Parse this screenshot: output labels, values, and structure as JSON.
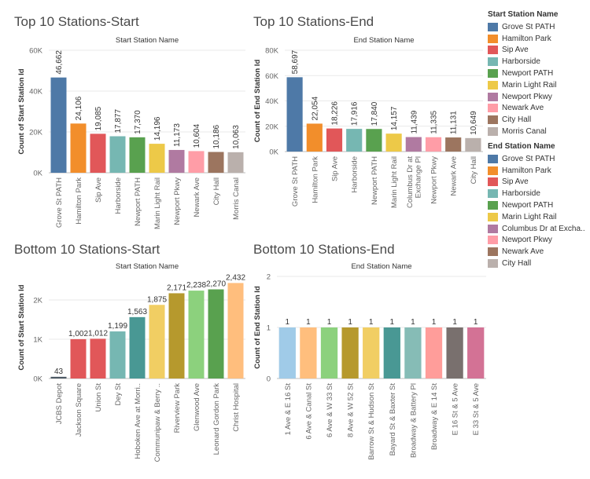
{
  "colors": {
    "grid": "#e9e9e9",
    "axis": "#bdbdbd",
    "tick_text": "#666666",
    "label_text": "#333333"
  },
  "legend_start": {
    "title": "Start Station Name",
    "items": [
      {
        "label": "Grove St PATH",
        "color": "#4e79a7"
      },
      {
        "label": "Hamilton Park",
        "color": "#f28e2b"
      },
      {
        "label": "Sip Ave",
        "color": "#e15759"
      },
      {
        "label": "Harborside",
        "color": "#76b7b2"
      },
      {
        "label": "Newport PATH",
        "color": "#59a14f"
      },
      {
        "label": "Marin Light Rail",
        "color": "#edc948"
      },
      {
        "label": "Newport Pkwy",
        "color": "#b07aa1"
      },
      {
        "label": "Newark Ave",
        "color": "#ff9da7"
      },
      {
        "label": "City Hall",
        "color": "#9c755f"
      },
      {
        "label": "Morris Canal",
        "color": "#bab0ac"
      }
    ]
  },
  "legend_end": {
    "title": "End Station Name",
    "items": [
      {
        "label": "Grove St PATH",
        "color": "#4e79a7"
      },
      {
        "label": "Hamilton Park",
        "color": "#f28e2b"
      },
      {
        "label": "Sip Ave",
        "color": "#e15759"
      },
      {
        "label": "Harborside",
        "color": "#76b7b2"
      },
      {
        "label": "Newport PATH",
        "color": "#59a14f"
      },
      {
        "label": "Marin Light Rail",
        "color": "#edc948"
      },
      {
        "label": "Columbus Dr at Excha..",
        "color": "#b07aa1"
      },
      {
        "label": "Newport Pkwy",
        "color": "#ff9da7"
      },
      {
        "label": "Newark Ave",
        "color": "#9c755f"
      },
      {
        "label": "City Hall",
        "color": "#bab0ac"
      }
    ]
  },
  "chart_data": [
    {
      "type": "bar",
      "title": "Top 10 Stations-Start",
      "subtitle": "Start Station Name",
      "ylabel": "Count of Start Station Id",
      "ylim": [
        0,
        60000
      ],
      "yticks": [
        0,
        20000,
        40000,
        60000
      ],
      "ytick_labels": [
        "0K",
        "20K",
        "40K",
        "60K"
      ],
      "categories": [
        "Grove St PATH",
        "Hamilton Park",
        "Sip Ave",
        "Harborside",
        "Newport PATH",
        "Marin Light Rail",
        "Newport Pkwy",
        "Newark Ave",
        "City Hall",
        "Morris Canal"
      ],
      "values": [
        46662,
        24106,
        19085,
        17877,
        17370,
        14196,
        11173,
        10604,
        10186,
        10063
      ],
      "value_labels": [
        "46,662",
        "24,106",
        "19,085",
        "17,877",
        "17,370",
        "14,196",
        "11,173",
        "10,604",
        "10,186",
        "10,063"
      ],
      "colors": [
        "#4e79a7",
        "#f28e2b",
        "#e15759",
        "#76b7b2",
        "#59a14f",
        "#edc948",
        "#b07aa1",
        "#ff9da7",
        "#9c755f",
        "#bab0ac"
      ],
      "grid": true
    },
    {
      "type": "bar",
      "title": "Top 10 Stations-End",
      "subtitle": "End Station Name",
      "ylabel": "Count of End Station Id",
      "ylim": [
        0,
        80000
      ],
      "yticks": [
        0,
        20000,
        40000,
        60000,
        80000
      ],
      "ytick_labels": [
        "0K",
        "20K",
        "40K",
        "60K",
        "80K"
      ],
      "categories": [
        "Grove St PATH",
        "Hamilton Park",
        "Sip Ave",
        "Harborside",
        "Newport PATH",
        "Marin Light Rail",
        "Columbus Dr at Exchange Pl",
        "Newport Pkwy",
        "Newark Ave",
        "City Hall"
      ],
      "category_lines": [
        [
          "Grove St PATH"
        ],
        [
          "Hamilton Park"
        ],
        [
          "Sip Ave"
        ],
        [
          "Harborside"
        ],
        [
          "Newport PATH"
        ],
        [
          "Marin Light Rail"
        ],
        [
          "Columbus Dr at",
          "Exchange Pl"
        ],
        [
          "Newport Pkwy"
        ],
        [
          "Newark Ave"
        ],
        [
          "City Hall"
        ]
      ],
      "values": [
        58697,
        22054,
        18226,
        17916,
        17840,
        14157,
        11439,
        11335,
        11131,
        10649
      ],
      "value_labels": [
        "58,697",
        "22,054",
        "18,226",
        "17,916",
        "17,840",
        "14,157",
        "11,439",
        "11,335",
        "11,131",
        "10,649"
      ],
      "colors": [
        "#4e79a7",
        "#f28e2b",
        "#e15759",
        "#76b7b2",
        "#59a14f",
        "#edc948",
        "#b07aa1",
        "#ff9da7",
        "#9c755f",
        "#bab0ac"
      ],
      "grid": true
    },
    {
      "type": "bar",
      "title": "Bottom 10 Stations-Start",
      "subtitle": "Start Station Name",
      "ylabel": "Count of Start Station Id",
      "ylim": [
        0,
        2600
      ],
      "yticks": [
        0,
        1000,
        2000
      ],
      "ytick_labels": [
        "0K",
        "1K",
        "2K"
      ],
      "categories": [
        "JCBS Depot",
        "Jackson Square",
        "Union St",
        "Dey St",
        "Hoboken Ave at Morri..",
        "Communipaw & Berry ..",
        "Riverview Park",
        "Glenwood Ave",
        "Leonard Gordon Park",
        "Christ Hospital"
      ],
      "values": [
        43,
        1002,
        1012,
        1199,
        1563,
        1875,
        2171,
        2238,
        2270,
        2432
      ],
      "value_labels": [
        "43",
        "1,002",
        "1,012",
        "1,199",
        "1,563",
        "1,875",
        "2,171",
        "2,238",
        "2,270",
        "2,432"
      ],
      "colors": [
        "#4e5a65",
        "#e15759",
        "#e15759",
        "#76b7b2",
        "#499894",
        "#f1ce63",
        "#b6992d",
        "#8cd17d",
        "#59a14f",
        "#ffbe7d"
      ],
      "grid": true
    },
    {
      "type": "bar",
      "title": "Bottom 10 Stations-End",
      "subtitle": "End Station Name",
      "ylabel": "Count of End Station Id",
      "ylim": [
        0,
        2
      ],
      "yticks": [
        0,
        1,
        2
      ],
      "ytick_labels": [
        "0",
        "1",
        "2"
      ],
      "categories": [
        "1 Ave & E 16 St",
        "6 Ave & Canal St",
        "6 Ave & W 33 St",
        "8 Ave & W 52 St",
        "Barrow St & Hudson St",
        "Bayard St & Baxter St",
        "Broadway & Battery Pl",
        "Broadway & E 14 St",
        "E 16 St & 5 Ave",
        "E 33 St & 5 Ave"
      ],
      "values": [
        1,
        1,
        1,
        1,
        1,
        1,
        1,
        1,
        1,
        1
      ],
      "value_labels": [
        "1",
        "1",
        "1",
        "1",
        "1",
        "1",
        "1",
        "1",
        "1",
        "1"
      ],
      "colors": [
        "#a0cbe8",
        "#ffbe7d",
        "#8cd17d",
        "#b6992d",
        "#f1ce63",
        "#499894",
        "#86bcb6",
        "#ff9d9a",
        "#79706e",
        "#d37295"
      ],
      "grid": true
    }
  ]
}
